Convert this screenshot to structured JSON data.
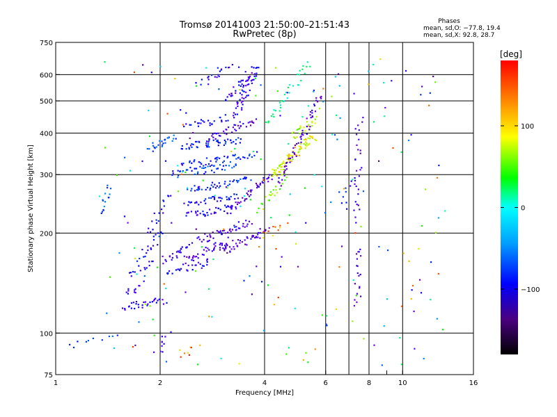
{
  "chart_data": {
    "type": "scatter",
    "title": "Tromsø 20141003 21:50:00–21:51:43",
    "subtitle": "RwPretec (8p)",
    "xlabel": "Frequency [MHz]",
    "ylabel": "Stationary phase Virtual Height [km]",
    "x_scale": "log",
    "y_scale": "log",
    "xlim": [
      1,
      16
    ],
    "ylim": [
      75,
      750
    ],
    "x_ticks": [
      1,
      2,
      4,
      6,
      8,
      10,
      16
    ],
    "x_minor_ticks": [
      9
    ],
    "x_grid": [
      2,
      4,
      6,
      7,
      8,
      10
    ],
    "y_ticks": [
      75,
      100,
      200,
      300,
      400,
      500,
      600,
      750
    ],
    "y_grid": [
      100,
      200,
      300,
      400,
      500,
      600
    ],
    "grid": true,
    "stats": {
      "header": "Phases",
      "line_o": "mean, sd,O: −77.8, 19.4",
      "line_x": "mean, sd,X:  92.8, 28.7"
    },
    "colorbar": {
      "label": "[deg]",
      "range": [
        -180,
        180
      ],
      "ticks": [
        100,
        0,
        -100
      ],
      "tick_labels": [
        "100",
        "0",
        "−100"
      ],
      "colormap": "rainbow"
    },
    "traces": [
      {
        "x0": 1.55,
        "x1": 2.05,
        "y0": 120,
        "y1": 125,
        "phase": -110,
        "n": 30
      },
      {
        "x0": 1.58,
        "x1": 1.8,
        "y0": 130,
        "y1": 140,
        "phase": -115,
        "n": 12
      },
      {
        "x0": 1.65,
        "x1": 1.9,
        "y0": 150,
        "y1": 165,
        "phase": -105,
        "n": 14
      },
      {
        "x0": 1.75,
        "x1": 2.0,
        "y0": 165,
        "y1": 200,
        "phase": -90,
        "n": 18
      },
      {
        "x0": 1.85,
        "x1": 2.1,
        "y0": 200,
        "y1": 260,
        "phase": -90,
        "n": 18
      },
      {
        "x0": 1.85,
        "x1": 2.2,
        "y0": 360,
        "y1": 390,
        "phase": -60,
        "n": 24
      },
      {
        "x0": 2.05,
        "x1": 2.45,
        "y0": 165,
        "y1": 185,
        "phase": -115,
        "n": 25
      },
      {
        "x0": 2.35,
        "x1": 3.2,
        "y0": 165,
        "y1": 190,
        "phase": -120,
        "n": 40
      },
      {
        "x0": 2.6,
        "x1": 3.6,
        "y0": 190,
        "y1": 215,
        "phase": -125,
        "n": 45
      },
      {
        "x0": 3.0,
        "x1": 4.1,
        "y0": 175,
        "y1": 205,
        "phase": -130,
        "n": 45
      },
      {
        "x0": 2.1,
        "x1": 2.8,
        "y0": 150,
        "y1": 165,
        "phase": -100,
        "n": 25
      },
      {
        "x0": 2.4,
        "x1": 3.2,
        "y0": 225,
        "y1": 240,
        "phase": -100,
        "n": 35
      },
      {
        "x0": 2.4,
        "x1": 3.4,
        "y0": 245,
        "y1": 260,
        "phase": -95,
        "n": 35
      },
      {
        "x0": 2.4,
        "x1": 3.6,
        "y0": 270,
        "y1": 290,
        "phase": -80,
        "n": 40
      },
      {
        "x0": 2.2,
        "x1": 3.3,
        "y0": 300,
        "y1": 320,
        "phase": -70,
        "n": 40
      },
      {
        "x0": 2.3,
        "x1": 3.8,
        "y0": 320,
        "y1": 345,
        "phase": -85,
        "n": 45
      },
      {
        "x0": 2.3,
        "x1": 3.4,
        "y0": 365,
        "y1": 380,
        "phase": -80,
        "n": 45
      },
      {
        "x0": 2.7,
        "x1": 3.8,
        "y0": 380,
        "y1": 440,
        "phase": -120,
        "n": 40
      },
      {
        "x0": 2.4,
        "x1": 3.1,
        "y0": 420,
        "y1": 445,
        "phase": -95,
        "n": 25
      },
      {
        "x0": 3.1,
        "x1": 4.2,
        "y0": 230,
        "y1": 300,
        "phase": -125,
        "n": 45
      },
      {
        "x0": 3.3,
        "x1": 3.8,
        "y0": 450,
        "y1": 640,
        "phase": -110,
        "n": 50
      },
      {
        "x0": 3.1,
        "x1": 3.6,
        "y0": 500,
        "y1": 600,
        "phase": -105,
        "n": 25
      },
      {
        "x0": 2.6,
        "x1": 3.2,
        "y0": 560,
        "y1": 640,
        "phase": -95,
        "n": 20
      },
      {
        "x0": 4.2,
        "x1": 5.5,
        "y0": 300,
        "y1": 390,
        "phase": 115,
        "n": 80
      },
      {
        "x0": 4.8,
        "x1": 5.6,
        "y0": 390,
        "y1": 440,
        "phase": 105,
        "n": 25
      },
      {
        "x0": 3.9,
        "x1": 4.6,
        "y0": 235,
        "y1": 300,
        "phase": 90,
        "n": 25
      },
      {
        "x0": 4.4,
        "x1": 5.8,
        "y0": 280,
        "y1": 520,
        "phase": -125,
        "n": 55
      },
      {
        "x0": 4.0,
        "x1": 5.4,
        "y0": 420,
        "y1": 650,
        "phase": 20,
        "n": 35
      },
      {
        "x0": 4.0,
        "x1": 4.6,
        "y0": 195,
        "y1": 210,
        "phase": 140,
        "n": 10
      },
      {
        "x0": 1.38,
        "x1": 1.42,
        "y0": 230,
        "y1": 280,
        "phase": -60,
        "n": 14
      },
      {
        "x0": 7.4,
        "x1": 7.5,
        "y0": 120,
        "y1": 180,
        "phase": -125,
        "n": 18
      },
      {
        "x0": 7.4,
        "x1": 7.5,
        "y0": 220,
        "y1": 440,
        "phase": -125,
        "n": 30
      },
      {
        "x0": 6.8,
        "x1": 7.0,
        "y0": 240,
        "y1": 290,
        "phase": -90,
        "n": 8
      },
      {
        "x0": 1.95,
        "x1": 2.1,
        "y0": 86,
        "y1": 100,
        "phase": -110,
        "n": 10
      },
      {
        "x0": 2.3,
        "x1": 2.55,
        "y0": 86,
        "y1": 92,
        "phase": 150,
        "n": 8
      },
      {
        "x0": 1.1,
        "x1": 1.5,
        "y0": 92,
        "y1": 97,
        "phase": -70,
        "n": 10
      }
    ],
    "scatter": {
      "x0": 1.3,
      "x1": 13.5,
      "y0": 80,
      "y1": 680,
      "phase_range": [
        -160,
        170
      ],
      "n": 220
    }
  }
}
